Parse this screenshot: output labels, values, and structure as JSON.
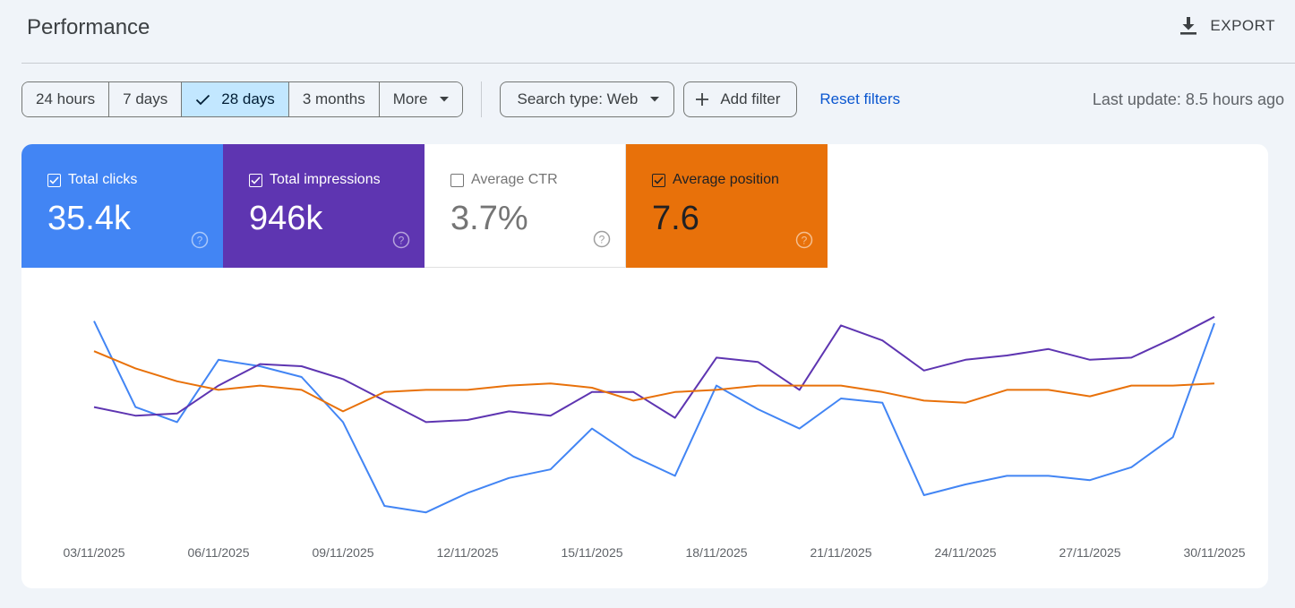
{
  "header": {
    "title": "Performance",
    "export_label": "EXPORT"
  },
  "toolbar": {
    "ranges": [
      "24 hours",
      "7 days",
      "28 days",
      "3 months",
      "More"
    ],
    "active_range": "28 days",
    "search_type": "Search type: Web",
    "add_filter": "Add filter",
    "reset_filters": "Reset filters",
    "last_update": "Last update: 8.5 hours ago"
  },
  "metrics": {
    "clicks": {
      "label": "Total clicks",
      "value": "35.4k",
      "checked": true,
      "color": "#4285f4"
    },
    "impressions": {
      "label": "Total impressions",
      "value": "946k",
      "checked": true,
      "color": "#5e35b1"
    },
    "ctr": {
      "label": "Average CTR",
      "value": "3.7%",
      "checked": false,
      "color": "#ffffff"
    },
    "position": {
      "label": "Average position",
      "value": "7.6",
      "checked": true,
      "color": "#e8710a"
    }
  },
  "icons": {
    "export": "download-icon",
    "check": "check-icon",
    "caret": "caret-down-icon",
    "plus": "plus-icon",
    "help": "help-circle-icon"
  },
  "chart_data": {
    "type": "line",
    "x": [
      "03/11/2025",
      "04/11/2025",
      "05/11/2025",
      "06/11/2025",
      "07/11/2025",
      "08/11/2025",
      "09/11/2025",
      "10/11/2025",
      "11/11/2025",
      "12/11/2025",
      "13/11/2025",
      "14/11/2025",
      "15/11/2025",
      "16/11/2025",
      "17/11/2025",
      "18/11/2025",
      "19/11/2025",
      "20/11/2025",
      "21/11/2025",
      "22/11/2025",
      "23/11/2025",
      "24/11/2025",
      "25/11/2025",
      "26/11/2025",
      "27/11/2025",
      "28/11/2025",
      "29/11/2025",
      "30/11/2025"
    ],
    "x_tick_labels": [
      "03/11/2025",
      "06/11/2025",
      "09/11/2025",
      "12/11/2025",
      "15/11/2025",
      "18/11/2025",
      "21/11/2025",
      "24/11/2025",
      "27/11/2025",
      "30/11/2025"
    ],
    "series": [
      {
        "name": "Total clicks",
        "color": "#4285f4",
        "values": [
          0.96,
          0.56,
          0.49,
          0.78,
          0.75,
          0.7,
          0.49,
          0.1,
          0.07,
          0.16,
          0.23,
          0.27,
          0.46,
          0.33,
          0.24,
          0.66,
          0.55,
          0.46,
          0.6,
          0.58,
          0.15,
          0.2,
          0.24,
          0.24,
          0.22,
          0.28,
          0.42,
          0.95
        ]
      },
      {
        "name": "Total impressions",
        "color": "#5e35b1",
        "values": [
          0.56,
          0.52,
          0.53,
          0.66,
          0.76,
          0.75,
          0.69,
          0.59,
          0.49,
          0.5,
          0.54,
          0.52,
          0.63,
          0.63,
          0.51,
          0.79,
          0.77,
          0.64,
          0.94,
          0.87,
          0.73,
          0.78,
          0.8,
          0.83,
          0.78,
          0.79,
          0.88,
          0.98
        ]
      },
      {
        "name": "Average position",
        "color": "#e8710a",
        "values": [
          0.82,
          0.74,
          0.68,
          0.64,
          0.66,
          0.64,
          0.54,
          0.63,
          0.64,
          0.64,
          0.66,
          0.67,
          0.65,
          0.59,
          0.63,
          0.64,
          0.66,
          0.66,
          0.66,
          0.63,
          0.59,
          0.58,
          0.64,
          0.64,
          0.61,
          0.66,
          0.66,
          0.67
        ]
      }
    ],
    "grid": false,
    "legend": "none"
  }
}
